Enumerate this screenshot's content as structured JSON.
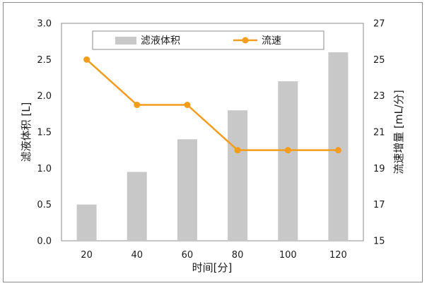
{
  "chart_data": {
    "type": "bar+line",
    "categories": [
      "20",
      "40",
      "60",
      "80",
      "100",
      "120"
    ],
    "series": [
      {
        "name": "滤液体积",
        "type": "bar",
        "axis": "left",
        "color": "#c8c8c8",
        "values": [
          0.5,
          0.95,
          1.4,
          1.8,
          2.2,
          2.6
        ]
      },
      {
        "name": "流速",
        "type": "line",
        "axis": "right",
        "color": "#f39c1d",
        "values": [
          25,
          22.5,
          22.5,
          20,
          20,
          20
        ]
      }
    ],
    "xlabel": "时间[分]",
    "ylabel_left": "滤液体积 [L]",
    "ylabel_right": "流速增量 [mL/分]",
    "ylim_left": [
      0,
      3.0
    ],
    "ylim_right": [
      15,
      27
    ],
    "yticks_left": [
      "0.0",
      "0.5",
      "1.0",
      "1.5",
      "2.0",
      "2.5",
      "3.0"
    ],
    "yticks_right": [
      "15",
      "17",
      "19",
      "21",
      "23",
      "25",
      "27"
    ],
    "grid": false,
    "legend_position": "top-center"
  }
}
